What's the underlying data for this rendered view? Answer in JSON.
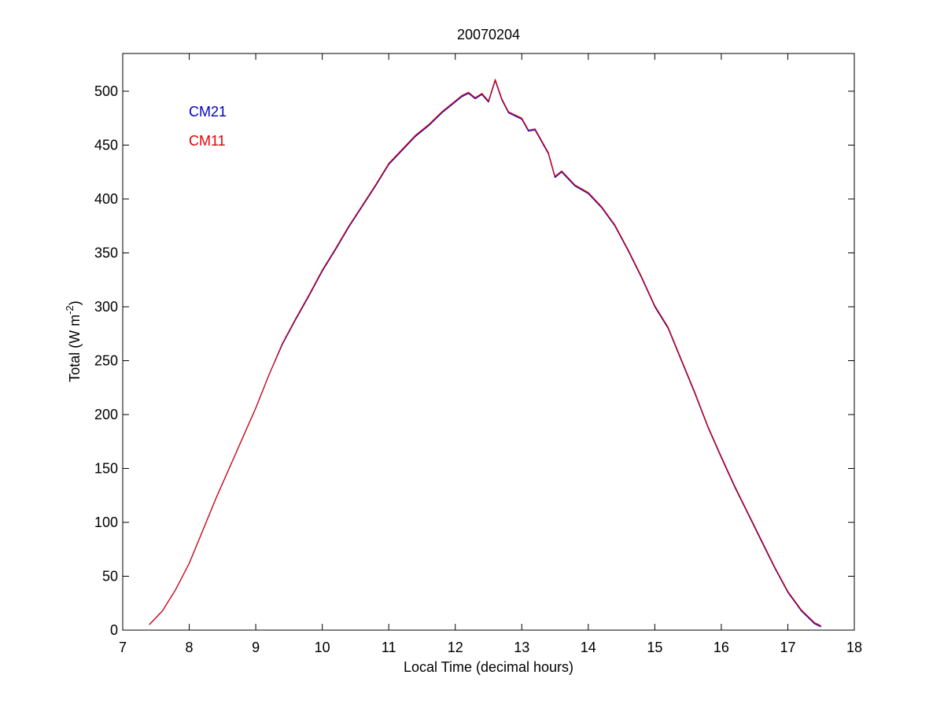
{
  "chart_data": {
    "type": "line",
    "title": "20070204",
    "xlabel": "Local Time (decimal hours)",
    "ylabel_main": "Total (W m",
    "ylabel_sup": "-2",
    "ylabel_close": ")",
    "xlim": [
      7,
      18
    ],
    "ylim": [
      0,
      535
    ],
    "xticks": [
      7,
      8,
      9,
      10,
      11,
      12,
      13,
      14,
      15,
      16,
      17,
      18
    ],
    "yticks": [
      0,
      50,
      100,
      150,
      200,
      250,
      300,
      350,
      400,
      450,
      500
    ],
    "grid": false,
    "legend_position": "top-left",
    "series": [
      {
        "name": "CM21",
        "color": "#0000c8",
        "x": [
          7.4,
          7.6,
          7.8,
          8.0,
          8.2,
          8.4,
          8.6,
          8.8,
          9.0,
          9.2,
          9.4,
          9.6,
          9.8,
          10.0,
          10.2,
          10.4,
          10.6,
          10.8,
          11.0,
          11.2,
          11.4,
          11.6,
          11.8,
          12.0,
          12.1,
          12.2,
          12.3,
          12.4,
          12.5,
          12.6,
          12.7,
          12.8,
          13.0,
          13.1,
          13.2,
          13.4,
          13.5,
          13.6,
          13.8,
          14.0,
          14.2,
          14.4,
          14.6,
          14.8,
          15.0,
          15.2,
          15.4,
          15.6,
          15.8,
          16.0,
          16.2,
          16.4,
          16.6,
          16.8,
          17.0,
          17.2,
          17.4,
          17.5
        ],
        "y": [
          5,
          18,
          38,
          62,
          92,
          122,
          150,
          178,
          206,
          237,
          265,
          288,
          310,
          333,
          353,
          374,
          393,
          412,
          432,
          445,
          458,
          468,
          480,
          490,
          495,
          498,
          493,
          497,
          490,
          510,
          492,
          480,
          474,
          463,
          464,
          442,
          420,
          425,
          412,
          405,
          392,
          375,
          352,
          327,
          300,
          280,
          250,
          220,
          188,
          160,
          133,
          108,
          83,
          58,
          35,
          18,
          6,
          3
        ]
      },
      {
        "name": "CM11",
        "color": "#e00000",
        "x": [
          7.4,
          7.6,
          7.8,
          8.0,
          8.2,
          8.4,
          8.6,
          8.8,
          9.0,
          9.2,
          9.4,
          9.6,
          9.8,
          10.0,
          10.2,
          10.4,
          10.6,
          10.8,
          11.0,
          11.2,
          11.4,
          11.6,
          11.8,
          12.0,
          12.1,
          12.2,
          12.3,
          12.4,
          12.5,
          12.6,
          12.7,
          12.8,
          13.0,
          13.1,
          13.2,
          13.4,
          13.5,
          13.6,
          13.8,
          14.0,
          14.2,
          14.4,
          14.6,
          14.8,
          15.0,
          15.2,
          15.4,
          15.6,
          15.8,
          16.0,
          16.2,
          16.4,
          16.6,
          16.8,
          17.0,
          17.2,
          17.4,
          17.5
        ],
        "y": [
          5,
          18,
          38,
          62,
          92,
          122,
          150,
          178,
          206,
          237,
          266,
          289,
          311,
          334,
          354,
          375,
          394,
          413,
          433,
          446,
          459,
          469,
          481,
          491,
          496,
          499,
          494,
          498,
          491,
          511,
          493,
          481,
          475,
          464,
          465,
          443,
          421,
          426,
          413,
          406,
          393,
          376,
          353,
          328,
          301,
          281,
          251,
          221,
          189,
          161,
          134,
          109,
          84,
          59,
          36,
          19,
          7,
          4
        ]
      }
    ]
  }
}
